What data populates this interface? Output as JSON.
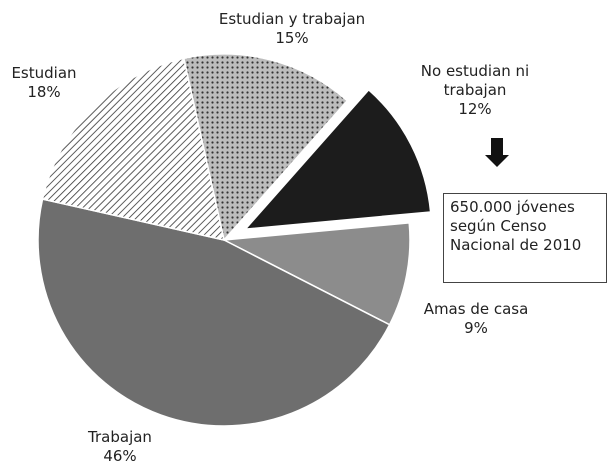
{
  "chart_data": {
    "type": "pie",
    "categories": [
      "Estudian y trabajan",
      "No estudian ni trabajan",
      "Amas de casa",
      "Trabajan",
      "Estudian"
    ],
    "values": [
      15,
      12,
      9,
      46,
      18
    ],
    "value_labels": [
      "15%",
      "12%",
      "9%",
      "46%",
      "18%"
    ],
    "colors": [
      "#9a9a9a",
      "#1c1c1c",
      "#8c8c8c",
      "#6e6e6e",
      "#555555"
    ],
    "explode": 1,
    "annotation": [
      "650.000 jóvenes",
      "según Censo",
      "Nacional de 2010"
    ]
  }
}
